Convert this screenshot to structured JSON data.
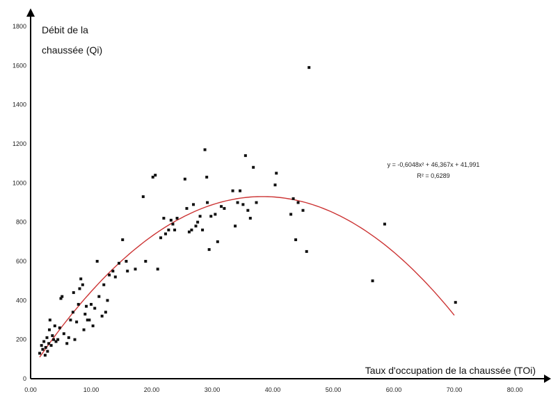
{
  "chart_data": {
    "type": "scatter",
    "xlabel": "Taux d'occupation de la chaussée (TOi)",
    "ylabel": [
      "Débit de la",
      "chaussée (Qi)"
    ],
    "xlim": [
      0,
      80
    ],
    "ylim": [
      0,
      1800
    ],
    "x_ticks": [
      "0.00",
      "10.00",
      "20.00",
      "30.00",
      "40.00",
      "50.00",
      "60.00",
      "70.00",
      "80.00"
    ],
    "y_ticks": [
      "0",
      "200",
      "400",
      "600",
      "800",
      "1000",
      "1200",
      "1400",
      "1600",
      "1800"
    ],
    "grid": false,
    "legend": "none",
    "colors": {
      "points": "#111111",
      "trendline": "#cc3333",
      "axes": "#000000"
    },
    "trendline": {
      "type": "polynomial-2",
      "coefficients": [
        -0.6048,
        46.367,
        41.991
      ],
      "x_range": [
        1.5,
        70
      ],
      "equation": "y = -0,6048x² + 46,367x + 41,991",
      "r2": "R² = 0,6289"
    },
    "points": [
      [
        1.5,
        130
      ],
      [
        1.8,
        170
      ],
      [
        2.0,
        150
      ],
      [
        2.2,
        190
      ],
      [
        2.4,
        120
      ],
      [
        2.5,
        160
      ],
      [
        2.7,
        210
      ],
      [
        2.8,
        140
      ],
      [
        3.0,
        180
      ],
      [
        3.1,
        250
      ],
      [
        3.2,
        300
      ],
      [
        3.4,
        170
      ],
      [
        3.6,
        220
      ],
      [
        3.8,
        200
      ],
      [
        4.0,
        270
      ],
      [
        4.2,
        190
      ],
      [
        4.5,
        200
      ],
      [
        4.8,
        260
      ],
      [
        5.0,
        410
      ],
      [
        5.2,
        420
      ],
      [
        5.5,
        230
      ],
      [
        6.0,
        180
      ],
      [
        6.3,
        210
      ],
      [
        6.6,
        300
      ],
      [
        7.0,
        340
      ],
      [
        7.1,
        440
      ],
      [
        7.3,
        200
      ],
      [
        7.6,
        290
      ],
      [
        7.9,
        380
      ],
      [
        8.1,
        460
      ],
      [
        8.3,
        510
      ],
      [
        8.6,
        480
      ],
      [
        8.8,
        250
      ],
      [
        9.0,
        330
      ],
      [
        9.2,
        370
      ],
      [
        9.4,
        300
      ],
      [
        9.7,
        300
      ],
      [
        10.0,
        380
      ],
      [
        10.3,
        270
      ],
      [
        10.6,
        360
      ],
      [
        11.0,
        600
      ],
      [
        11.3,
        420
      ],
      [
        11.8,
        320
      ],
      [
        12.1,
        480
      ],
      [
        12.4,
        340
      ],
      [
        12.7,
        400
      ],
      [
        13.0,
        530
      ],
      [
        13.6,
        550
      ],
      [
        14.0,
        520
      ],
      [
        14.6,
        590
      ],
      [
        15.2,
        710
      ],
      [
        15.8,
        600
      ],
      [
        16.0,
        550
      ],
      [
        17.3,
        560
      ],
      [
        18.6,
        930
      ],
      [
        19.0,
        600
      ],
      [
        20.2,
        1030
      ],
      [
        20.6,
        1040
      ],
      [
        21.0,
        560
      ],
      [
        21.5,
        720
      ],
      [
        22.0,
        820
      ],
      [
        22.3,
        740
      ],
      [
        22.8,
        760
      ],
      [
        23.2,
        810
      ],
      [
        23.5,
        790
      ],
      [
        23.8,
        760
      ],
      [
        24.2,
        820
      ],
      [
        25.5,
        1020
      ],
      [
        25.8,
        870
      ],
      [
        26.2,
        750
      ],
      [
        26.6,
        760
      ],
      [
        26.9,
        890
      ],
      [
        27.3,
        780
      ],
      [
        27.6,
        800
      ],
      [
        28.0,
        830
      ],
      [
        28.4,
        760
      ],
      [
        28.8,
        1170
      ],
      [
        29.1,
        1030
      ],
      [
        29.2,
        900
      ],
      [
        29.5,
        660
      ],
      [
        29.8,
        830
      ],
      [
        30.5,
        840
      ],
      [
        30.9,
        700
      ],
      [
        31.5,
        880
      ],
      [
        32.0,
        870
      ],
      [
        33.4,
        960
      ],
      [
        33.8,
        780
      ],
      [
        34.2,
        900
      ],
      [
        34.6,
        960
      ],
      [
        35.1,
        890
      ],
      [
        35.5,
        1140
      ],
      [
        35.9,
        860
      ],
      [
        36.3,
        820
      ],
      [
        36.8,
        1080
      ],
      [
        37.3,
        900
      ],
      [
        40.4,
        990
      ],
      [
        40.6,
        1050
      ],
      [
        43.0,
        840
      ],
      [
        43.4,
        920
      ],
      [
        43.8,
        710
      ],
      [
        44.2,
        900
      ],
      [
        45.0,
        860
      ],
      [
        45.6,
        650
      ],
      [
        46.0,
        1590
      ],
      [
        56.5,
        500
      ],
      [
        58.5,
        790
      ],
      [
        70.2,
        390
      ]
    ]
  }
}
